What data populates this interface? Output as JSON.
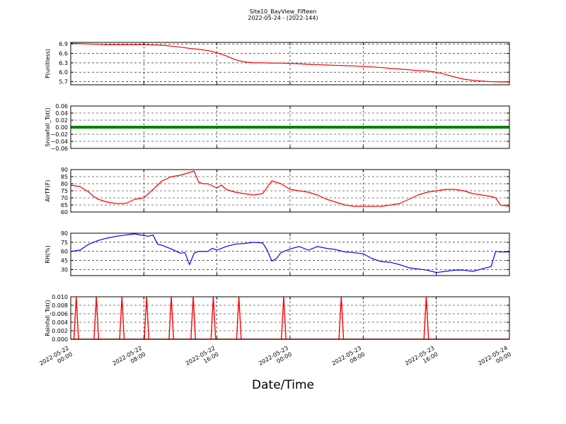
{
  "page": {
    "title": "Site10_BayView_Fifteen",
    "subtitle": "2022-05-24 - (2022-144)",
    "xlabel": "Date/Time"
  },
  "chart_data": {
    "x_axis": {
      "range": [
        "2022-05-22 00:00",
        "2022-05-24 00:00"
      ],
      "ticks": [
        {
          "value": "2022-05-22 00:00",
          "lines": [
            "2022-05-22",
            "00:00"
          ]
        },
        {
          "value": "2022-05-22 08:00",
          "lines": [
            "2022-05-22",
            "08:00"
          ]
        },
        {
          "value": "2022-05-22 16:00",
          "lines": [
            "2022-05-22",
            "16:00"
          ]
        },
        {
          "value": "2022-05-23 00:00",
          "lines": [
            "2022-05-23",
            "00:00"
          ]
        },
        {
          "value": "2022-05-23 08:00",
          "lines": [
            "2022-05-23",
            "08:00"
          ]
        },
        {
          "value": "2022-05-23 16:00",
          "lines": [
            "2022-05-23",
            "16:00"
          ]
        },
        {
          "value": "2022-05-24 00:00",
          "lines": [
            "2022-05-24",
            "00:00"
          ]
        }
      ]
    },
    "grid": true,
    "panels": [
      {
        "id": "p",
        "type": "line",
        "ylabel": "P(unitless)",
        "ylim": [
          5.6,
          6.95
        ],
        "ticks": [
          5.7,
          6.0,
          6.3,
          6.6,
          6.9
        ],
        "tick_labels": [
          "5.7",
          "6.0",
          "6.3",
          "6.6",
          "6.9"
        ],
        "color": "#ff0000",
        "x_hours": [
          0,
          1,
          2,
          3,
          4,
          5,
          6,
          7,
          8,
          9,
          10,
          11,
          12,
          13,
          14,
          15,
          16,
          17,
          18,
          19,
          20,
          21,
          22,
          23,
          24,
          25,
          26,
          27,
          28,
          29,
          30,
          31,
          32,
          33,
          34,
          35,
          36,
          37,
          38,
          39,
          40,
          41,
          42,
          43,
          44,
          45,
          46,
          47,
          48
        ],
        "values": [
          6.92,
          6.91,
          6.9,
          6.89,
          6.88,
          6.88,
          6.88,
          6.88,
          6.88,
          6.87,
          6.86,
          6.83,
          6.8,
          6.76,
          6.73,
          6.69,
          6.62,
          6.52,
          6.4,
          6.33,
          6.3,
          6.3,
          6.29,
          6.29,
          6.28,
          6.27,
          6.25,
          6.24,
          6.23,
          6.22,
          6.21,
          6.2,
          6.18,
          6.17,
          6.15,
          6.12,
          6.1,
          6.08,
          6.05,
          6.04,
          6.0,
          5.93,
          5.85,
          5.78,
          5.74,
          5.72,
          5.7,
          5.69,
          5.69
        ]
      },
      {
        "id": "snowfall",
        "type": "line",
        "ylabel": "Snowfall_Tot()",
        "ylim": [
          -0.06,
          0.06
        ],
        "ticks": [
          -0.06,
          -0.04,
          -0.02,
          0.0,
          0.02,
          0.04,
          0.06
        ],
        "tick_labels": [
          "−0.06",
          "−0.04",
          "−0.02",
          "0.00",
          "0.02",
          "0.04",
          "0.06"
        ],
        "color": "#008000",
        "marker": "dot",
        "x_hours": [
          0,
          48
        ],
        "values": [
          0.0,
          0.0
        ]
      },
      {
        "id": "airtf",
        "type": "line",
        "ylabel": "AirTF(F)",
        "ylim": [
          60,
          90
        ],
        "ticks": [
          60,
          65,
          70,
          75,
          80,
          85,
          90
        ],
        "tick_labels": [
          "60",
          "65",
          "70",
          "75",
          "80",
          "85",
          "90"
        ],
        "color": "#ff0000",
        "x_hours": [
          0,
          1,
          2,
          2.5,
          3,
          4,
          5,
          6,
          7,
          8,
          9,
          10,
          11,
          12,
          13,
          13.5,
          14,
          14.5,
          15,
          16,
          16.5,
          17,
          17.5,
          18,
          19,
          20,
          21,
          22,
          23,
          24,
          25,
          26,
          27,
          28,
          29,
          30,
          31,
          32,
          33,
          34,
          35,
          36,
          37,
          38,
          39,
          40,
          41,
          42,
          43,
          44,
          45,
          46,
          46.5,
          47,
          48
        ],
        "values": [
          79,
          78,
          74,
          71,
          69,
          67,
          66,
          66,
          69,
          70,
          76,
          82,
          85,
          86,
          88,
          89,
          81,
          80,
          80,
          77,
          79,
          76,
          75,
          74,
          73,
          72,
          73,
          82,
          80,
          76,
          75,
          74,
          72,
          69,
          67,
          65,
          64,
          64,
          64,
          64,
          65,
          66,
          69,
          72,
          74,
          75,
          76,
          76,
          75,
          73,
          72,
          71,
          70,
          65,
          64
        ]
      },
      {
        "id": "rh",
        "type": "line",
        "ylabel": "RH(%)",
        "ylim": [
          20,
          90
        ],
        "ticks": [
          30,
          45,
          60,
          75,
          90
        ],
        "tick_labels": [
          "30",
          "45",
          "60",
          "75",
          "90"
        ],
        "color": "#0000ff",
        "x_hours": [
          0,
          1,
          2,
          3,
          4,
          5,
          6,
          7,
          8,
          8.5,
          9,
          9.5,
          10,
          11,
          12,
          12.5,
          13,
          13.5,
          14,
          15,
          15.5,
          16,
          17,
          17.5,
          18,
          19,
          20,
          21,
          21.5,
          22,
          22.5,
          23,
          24,
          25,
          26,
          27,
          28,
          29,
          30,
          31,
          32,
          33,
          34,
          35,
          36,
          37,
          38,
          39,
          40,
          41,
          42,
          43,
          44,
          45,
          46,
          46.5,
          47,
          48
        ],
        "values": [
          60,
          62,
          72,
          78,
          82,
          85,
          87,
          89,
          86,
          85,
          87,
          72,
          70,
          64,
          57,
          58,
          38,
          57,
          60,
          60,
          65,
          62,
          68,
          70,
          72,
          73,
          75,
          74,
          62,
          44,
          48,
          58,
          64,
          68,
          62,
          68,
          65,
          63,
          59,
          58,
          56,
          48,
          43,
          42,
          38,
          33,
          31,
          29,
          25,
          27,
          29,
          29,
          27,
          31,
          35,
          60,
          59,
          59
        ]
      },
      {
        "id": "rainfall",
        "type": "line",
        "ylabel": "Rainfall_Tot()",
        "ylim": [
          0.0,
          0.01
        ],
        "ticks": [
          0.0,
          0.002,
          0.004,
          0.006,
          0.008,
          0.01
        ],
        "tick_labels": [
          "0.000",
          "0.002",
          "0.004",
          "0.006",
          "0.008",
          "0.010"
        ],
        "color": "#ff0000",
        "spike_hours": [
          0.6,
          2.8,
          5.6,
          8.3,
          11.0,
          13.4,
          15.6,
          18.4,
          23.3,
          29.6,
          38.9
        ],
        "spike_value": 0.01
      }
    ]
  }
}
